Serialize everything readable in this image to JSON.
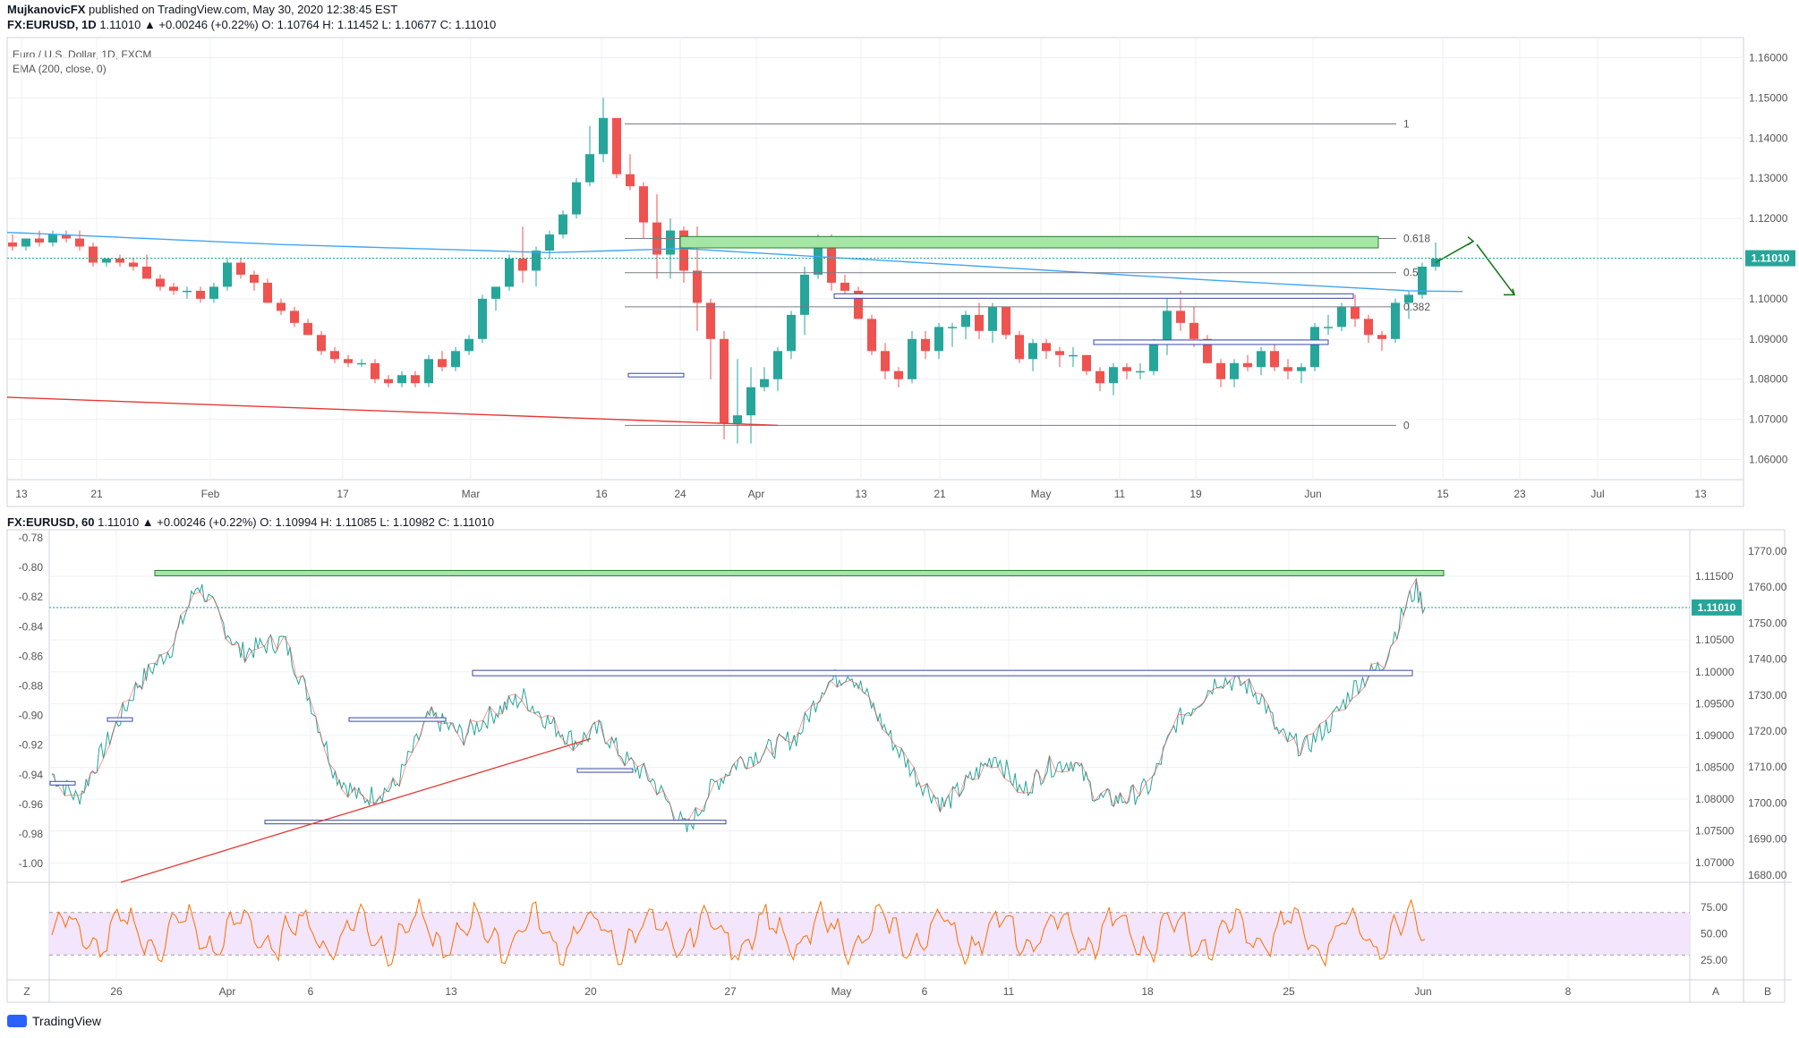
{
  "header": {
    "author": "MujkanovicFX",
    "published": "published on TradingView.com, May 30, 2020 12:38:45 EST",
    "symbol": "FX:EURUSD, 1D",
    "ohlc": "1.11010 ▲ +0.00246 (+0.22%) O: 1.10764 H: 1.11452 L: 1.10677 C: 1.11010"
  },
  "top_panel": {
    "title": "Euro / U.S. Dollar, 1D, FXCM",
    "indicator": "EMA (200, close, 0)",
    "price_label": "1.11010"
  },
  "bottom_panel": {
    "symbol": "FX:EURUSD, 60",
    "ohlc": "1.11010 ▲ +0.00246 (+0.22%) O: 1.10994 H: 1.11085 L: 1.10982 C: 1.11010",
    "price_label": "1.11010",
    "corner_left": "Z",
    "corner_a": "A",
    "corner_b": "B"
  },
  "footer": {
    "brand": "TradingView"
  },
  "colors": {
    "up": "#26a69a",
    "down": "#ef5350",
    "ema": "#42a5f5",
    "rsi": "#ff6d00",
    "green_zone": "#a5e6a5"
  },
  "chart_data": [
    {
      "type": "candlestick",
      "timeframe": "1D",
      "ylim": [
        1.055,
        1.165
      ],
      "y_ticks": [
        "1.16000",
        "1.15000",
        "1.14000",
        "1.13000",
        "1.12000",
        "1.11000",
        "1.10000",
        "1.09000",
        "1.08000",
        "1.07000",
        "1.06000"
      ],
      "x_ticks": [
        "13",
        "21",
        "Feb",
        "17",
        "Mar",
        "16",
        "24",
        "Apr",
        "13",
        "21",
        "May",
        "11",
        "19",
        "Jun",
        "15",
        "23",
        "Jul",
        "13"
      ],
      "fib_levels": [
        {
          "label": "1",
          "value": 1.1435
        },
        {
          "label": "0.618",
          "value": 1.115
        },
        {
          "label": "0.5",
          "value": 1.1065
        },
        {
          "label": "0.382",
          "value": 1.098
        },
        {
          "label": "0",
          "value": 1.0685
        }
      ],
      "candles": [
        [
          1.114,
          1.116,
          1.112,
          1.113
        ],
        [
          1.113,
          1.115,
          1.112,
          1.115
        ],
        [
          1.115,
          1.117,
          1.113,
          1.114
        ],
        [
          1.114,
          1.117,
          1.113,
          1.116
        ],
        [
          1.116,
          1.117,
          1.114,
          1.115
        ],
        [
          1.115,
          1.117,
          1.112,
          1.113
        ],
        [
          1.113,
          1.114,
          1.108,
          1.109
        ],
        [
          1.109,
          1.11,
          1.108,
          1.11
        ],
        [
          1.11,
          1.111,
          1.108,
          1.109
        ],
        [
          1.109,
          1.11,
          1.107,
          1.108
        ],
        [
          1.108,
          1.111,
          1.105,
          1.105
        ],
        [
          1.105,
          1.106,
          1.102,
          1.103
        ],
        [
          1.103,
          1.104,
          1.101,
          1.102
        ],
        [
          1.102,
          1.103,
          1.1,
          1.102
        ],
        [
          1.102,
          1.103,
          1.099,
          1.1
        ],
        [
          1.1,
          1.104,
          1.099,
          1.103
        ],
        [
          1.103,
          1.11,
          1.102,
          1.109
        ],
        [
          1.109,
          1.11,
          1.105,
          1.106
        ],
        [
          1.106,
          1.107,
          1.102,
          1.104
        ],
        [
          1.104,
          1.105,
          1.099,
          1.099
        ],
        [
          1.099,
          1.1,
          1.096,
          1.097
        ],
        [
          1.097,
          1.098,
          1.093,
          1.094
        ],
        [
          1.094,
          1.095,
          1.091,
          1.091
        ],
        [
          1.091,
          1.092,
          1.086,
          1.087
        ],
        [
          1.087,
          1.088,
          1.084,
          1.085
        ],
        [
          1.085,
          1.086,
          1.083,
          1.084
        ],
        [
          1.084,
          1.085,
          1.083,
          1.084
        ],
        [
          1.084,
          1.085,
          1.079,
          1.08
        ],
        [
          1.08,
          1.081,
          1.078,
          1.079
        ],
        [
          1.079,
          1.082,
          1.078,
          1.081
        ],
        [
          1.081,
          1.082,
          1.078,
          1.079
        ],
        [
          1.079,
          1.086,
          1.078,
          1.085
        ],
        [
          1.085,
          1.087,
          1.082,
          1.083
        ],
        [
          1.083,
          1.088,
          1.082,
          1.087
        ],
        [
          1.087,
          1.091,
          1.086,
          1.09
        ],
        [
          1.09,
          1.101,
          1.089,
          1.1
        ],
        [
          1.1,
          1.103,
          1.097,
          1.103
        ],
        [
          1.103,
          1.111,
          1.102,
          1.11
        ],
        [
          1.11,
          1.118,
          1.104,
          1.107
        ],
        [
          1.107,
          1.113,
          1.103,
          1.112
        ],
        [
          1.112,
          1.117,
          1.11,
          1.116
        ],
        [
          1.116,
          1.122,
          1.115,
          1.121
        ],
        [
          1.121,
          1.13,
          1.12,
          1.129
        ],
        [
          1.129,
          1.143,
          1.128,
          1.136
        ],
        [
          1.136,
          1.15,
          1.134,
          1.145
        ],
        [
          1.145,
          1.145,
          1.13,
          1.131
        ],
        [
          1.131,
          1.136,
          1.127,
          1.128
        ],
        [
          1.128,
          1.129,
          1.115,
          1.119
        ],
        [
          1.119,
          1.126,
          1.105,
          1.111
        ],
        [
          1.111,
          1.12,
          1.105,
          1.117
        ],
        [
          1.117,
          1.118,
          1.104,
          1.107
        ],
        [
          1.107,
          1.118,
          1.092,
          1.099
        ],
        [
          1.099,
          1.1,
          1.08,
          1.09
        ],
        [
          1.09,
          1.092,
          1.065,
          1.069
        ],
        [
          1.069,
          1.085,
          1.064,
          1.071
        ],
        [
          1.071,
          1.083,
          1.064,
          1.078
        ],
        [
          1.078,
          1.083,
          1.077,
          1.08
        ],
        [
          1.08,
          1.088,
          1.077,
          1.087
        ],
        [
          1.087,
          1.097,
          1.085,
          1.096
        ],
        [
          1.096,
          1.108,
          1.091,
          1.106
        ],
        [
          1.106,
          1.116,
          1.105,
          1.115
        ],
        [
          1.115,
          1.116,
          1.102,
          1.104
        ],
        [
          1.104,
          1.106,
          1.1,
          1.102
        ],
        [
          1.102,
          1.103,
          1.095,
          1.095
        ],
        [
          1.095,
          1.096,
          1.086,
          1.087
        ],
        [
          1.087,
          1.089,
          1.08,
          1.082
        ],
        [
          1.082,
          1.083,
          1.078,
          1.08
        ],
        [
          1.08,
          1.092,
          1.079,
          1.09
        ],
        [
          1.09,
          1.092,
          1.085,
          1.087
        ],
        [
          1.087,
          1.094,
          1.085,
          1.093
        ],
        [
          1.093,
          1.094,
          1.088,
          1.093
        ],
        [
          1.093,
          1.097,
          1.09,
          1.096
        ],
        [
          1.096,
          1.099,
          1.09,
          1.092
        ],
        [
          1.092,
          1.099,
          1.089,
          1.098
        ],
        [
          1.098,
          1.098,
          1.09,
          1.091
        ],
        [
          1.091,
          1.092,
          1.084,
          1.085
        ],
        [
          1.085,
          1.09,
          1.082,
          1.089
        ],
        [
          1.089,
          1.09,
          1.085,
          1.087
        ],
        [
          1.087,
          1.088,
          1.083,
          1.086
        ],
        [
          1.086,
          1.088,
          1.083,
          1.086
        ],
        [
          1.086,
          1.086,
          1.081,
          1.082
        ],
        [
          1.082,
          1.083,
          1.077,
          1.079
        ],
        [
          1.079,
          1.084,
          1.076,
          1.083
        ],
        [
          1.083,
          1.084,
          1.08,
          1.082
        ],
        [
          1.082,
          1.084,
          1.08,
          1.082
        ],
        [
          1.082,
          1.09,
          1.081,
          1.089
        ],
        [
          1.089,
          1.1,
          1.086,
          1.097
        ],
        [
          1.097,
          1.102,
          1.092,
          1.094
        ],
        [
          1.094,
          1.098,
          1.088,
          1.09
        ],
        [
          1.09,
          1.091,
          1.084,
          1.084
        ],
        [
          1.084,
          1.085,
          1.078,
          1.08
        ],
        [
          1.08,
          1.085,
          1.078,
          1.084
        ],
        [
          1.084,
          1.086,
          1.082,
          1.083
        ],
        [
          1.083,
          1.088,
          1.081,
          1.087
        ],
        [
          1.087,
          1.089,
          1.082,
          1.083
        ],
        [
          1.083,
          1.085,
          1.08,
          1.082
        ],
        [
          1.082,
          1.084,
          1.079,
          1.083
        ],
        [
          1.083,
          1.094,
          1.082,
          1.093
        ],
        [
          1.093,
          1.096,
          1.091,
          1.093
        ],
        [
          1.093,
          1.099,
          1.092,
          1.098
        ],
        [
          1.098,
          1.101,
          1.093,
          1.095
        ],
        [
          1.095,
          1.096,
          1.089,
          1.091
        ],
        [
          1.091,
          1.092,
          1.087,
          1.09
        ],
        [
          1.09,
          1.1,
          1.089,
          1.099
        ],
        [
          1.099,
          1.102,
          1.095,
          1.101
        ],
        [
          1.101,
          1.109,
          1.1,
          1.108
        ],
        [
          1.108,
          1.114,
          1.107,
          1.11
        ]
      ]
    },
    {
      "type": "line",
      "timeframe": "60",
      "x_ticks": [
        "26",
        "Apr",
        "6",
        "13",
        "20",
        "27",
        "May",
        "6",
        "11",
        "18",
        "25",
        "Jun",
        "8"
      ],
      "left_axis": [
        "-0.78",
        "-0.80",
        "-0.82",
        "-0.84",
        "-0.86",
        "-0.88",
        "-0.90",
        "-0.92",
        "-0.94",
        "-0.96",
        "-0.98",
        "-1.00"
      ],
      "right_axis_price": [
        "1.11500",
        "1.11000",
        "1.10500",
        "1.10000",
        "1.09500",
        "1.09000",
        "1.08500",
        "1.08000",
        "1.07500",
        "1.07000"
      ],
      "right_axis_index": [
        "1770.00",
        "1760.00",
        "1750.00",
        "1740.00",
        "1730.00",
        "1720.00",
        "1710.00",
        "1700.00",
        "1690.00",
        "1680.00"
      ],
      "ylim": [
        1.0675,
        1.1195
      ],
      "anchors": [
        [
          0,
          1.084
        ],
        [
          3,
          1.08
        ],
        [
          10,
          1.098
        ],
        [
          14,
          1.104
        ],
        [
          17,
          1.114
        ],
        [
          22,
          1.103
        ],
        [
          27,
          1.105
        ],
        [
          30,
          1.096
        ],
        [
          33,
          1.084
        ],
        [
          36,
          1.08
        ],
        [
          40,
          1.082
        ],
        [
          44,
          1.093
        ],
        [
          48,
          1.09
        ],
        [
          52,
          1.094
        ],
        [
          55,
          1.096
        ],
        [
          58,
          1.092
        ],
        [
          61,
          1.089
        ],
        [
          64,
          1.091
        ],
        [
          67,
          1.086
        ],
        [
          70,
          1.083
        ],
        [
          74,
          1.075
        ],
        [
          77,
          1.082
        ],
        [
          80,
          1.086
        ],
        [
          84,
          1.088
        ],
        [
          87,
          1.09
        ],
        [
          90,
          1.098
        ],
        [
          93,
          1.1
        ],
        [
          95,
          1.096
        ],
        [
          98,
          1.089
        ],
        [
          101,
          1.083
        ],
        [
          104,
          1.079
        ],
        [
          107,
          1.083
        ],
        [
          110,
          1.087
        ],
        [
          113,
          1.081
        ],
        [
          116,
          1.085
        ],
        [
          119,
          1.086
        ],
        [
          122,
          1.08
        ],
        [
          125,
          1.08
        ],
        [
          128,
          1.082
        ],
        [
          131,
          1.092
        ],
        [
          134,
          1.096
        ],
        [
          136,
          1.099
        ],
        [
          139,
          1.098
        ],
        [
          141,
          1.096
        ],
        [
          143,
          1.09
        ],
        [
          146,
          1.088
        ],
        [
          149,
          1.092
        ],
        [
          152,
          1.098
        ],
        [
          155,
          1.101
        ],
        [
          158,
          1.111
        ],
        [
          159,
          1.113
        ],
        [
          160,
          1.11
        ]
      ],
      "rsi": {
        "levels": [
          "75.00",
          "50.00",
          "25.00"
        ],
        "band": [
          30,
          70
        ]
      }
    }
  ]
}
